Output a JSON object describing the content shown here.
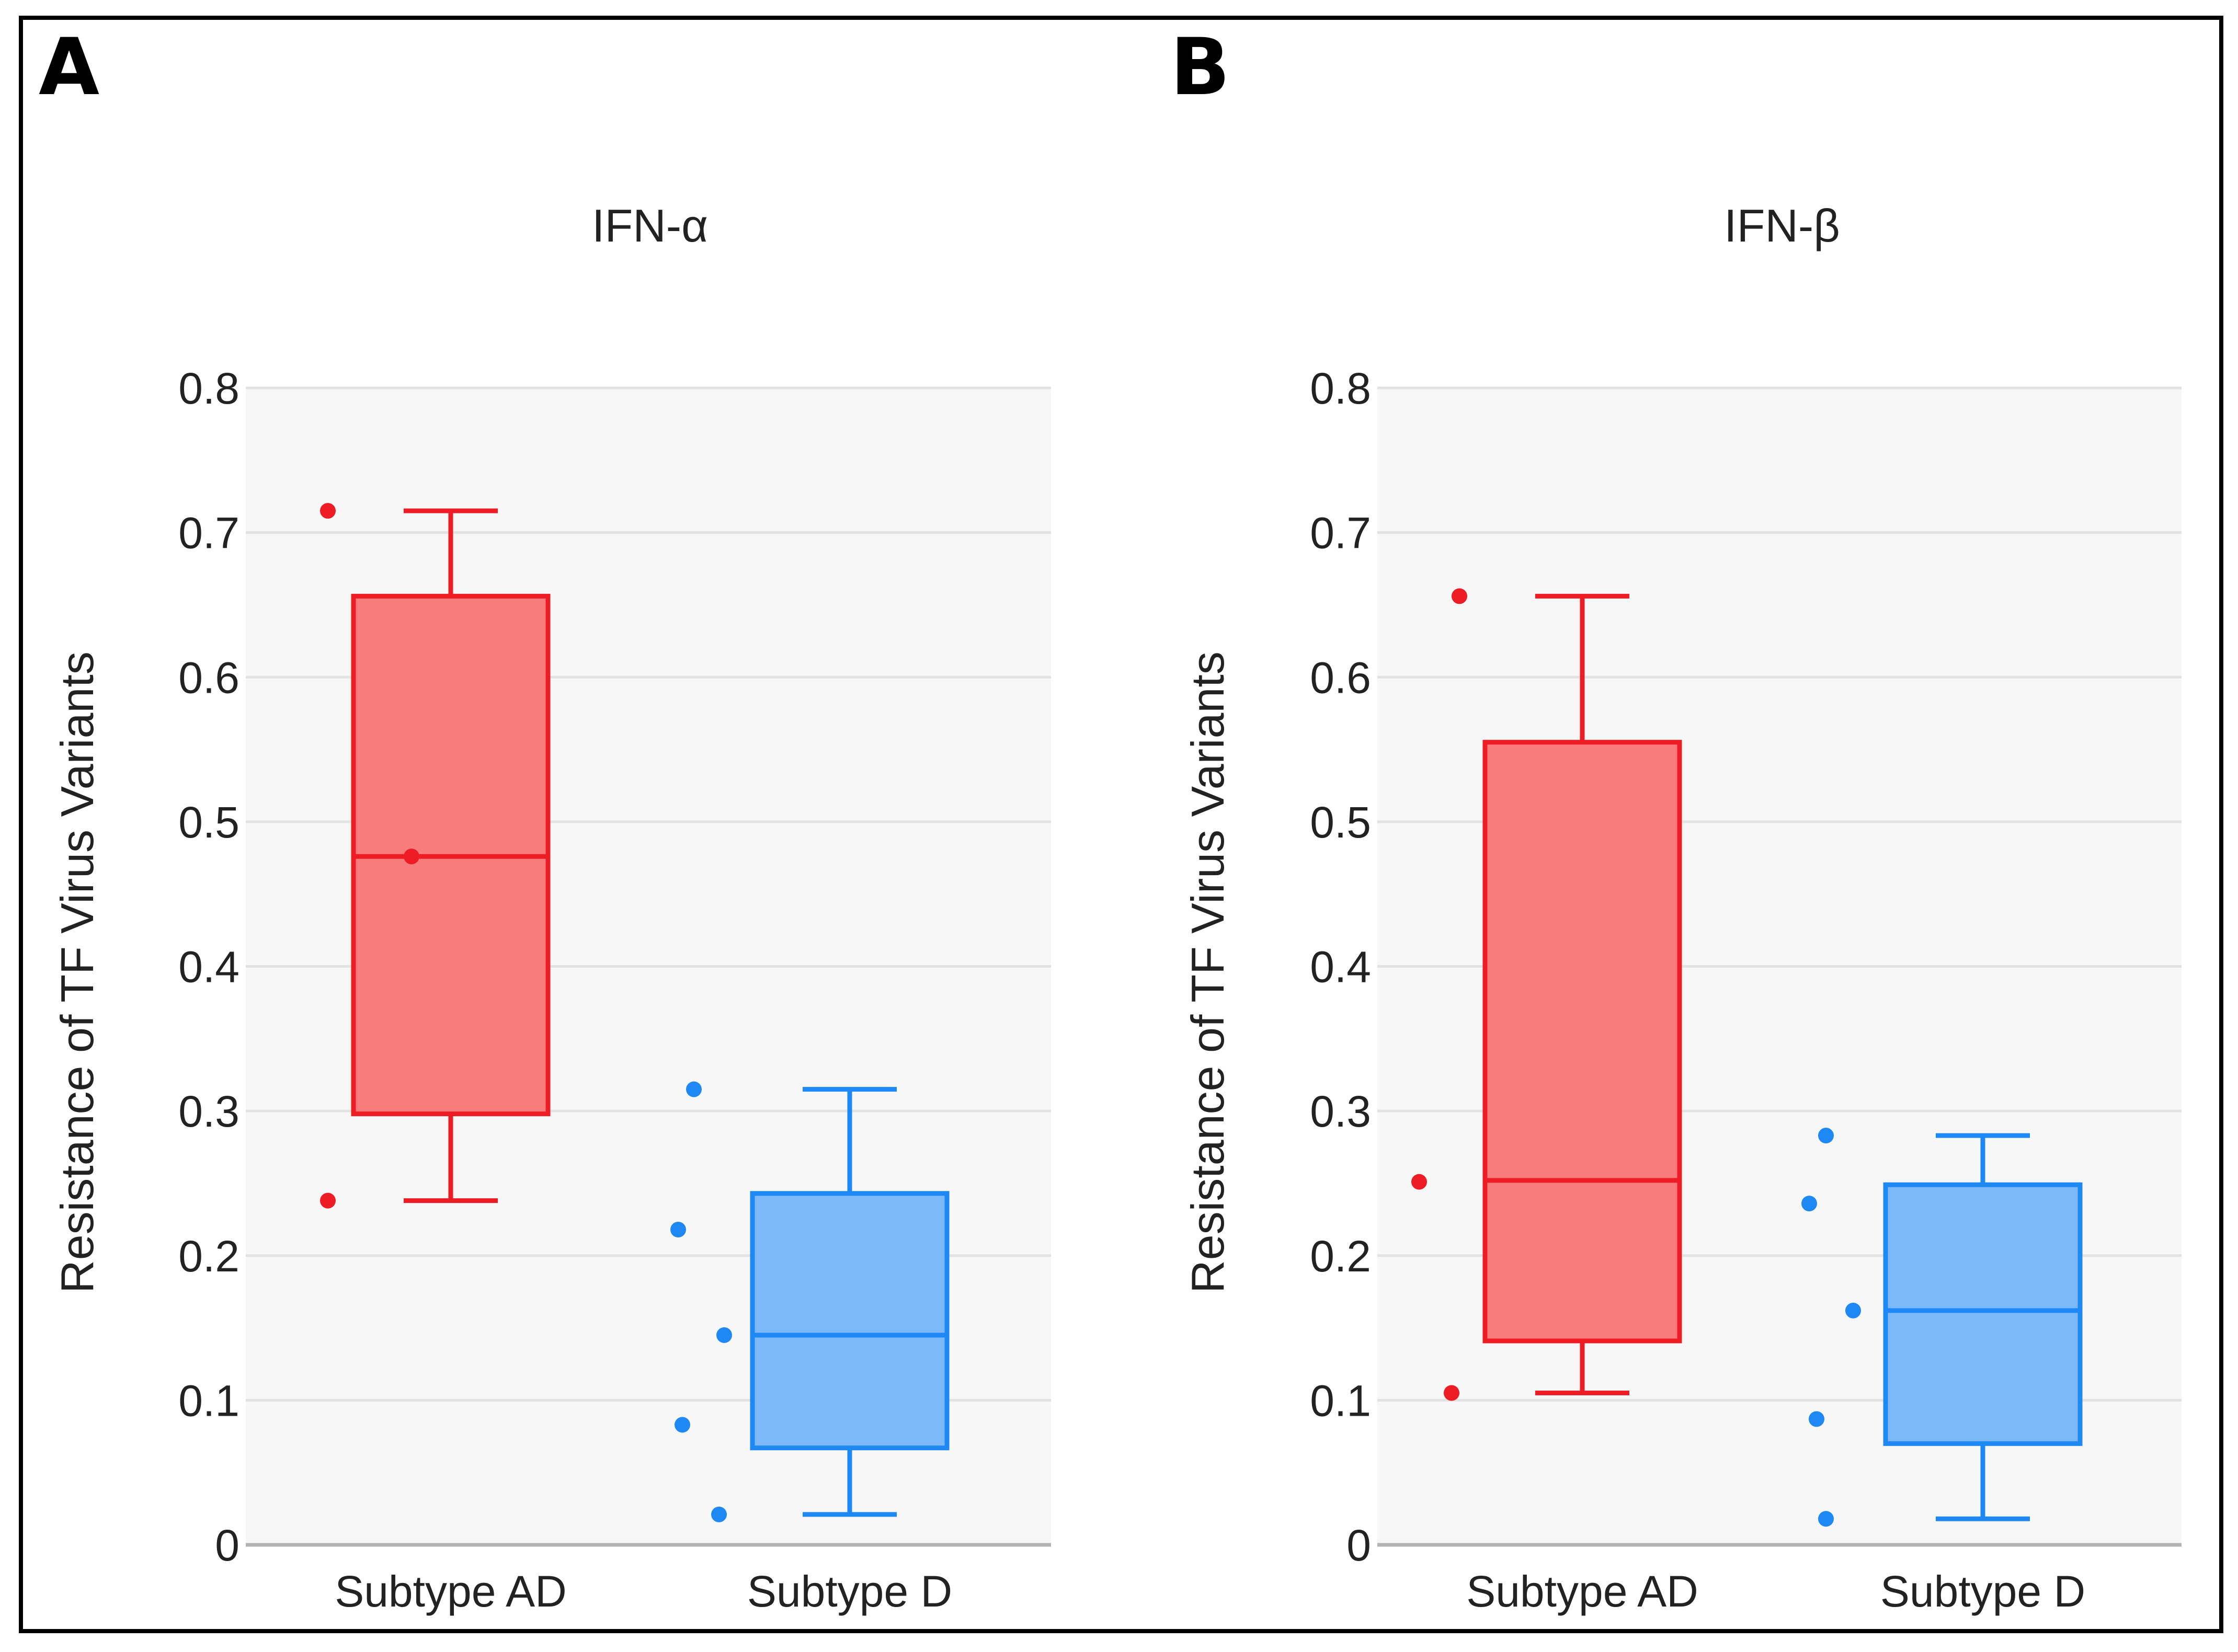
{
  "figure": {
    "panel_labels": [
      "A",
      "B"
    ]
  },
  "chart_data": [
    {
      "type": "box",
      "panel": "A",
      "title": "IFN-α",
      "xlabel": "",
      "ylabel": "Resistance of TF Virus Variants",
      "ylim": [
        0,
        0.8
      ],
      "yticks": [
        0,
        0.1,
        0.2,
        0.3,
        0.4,
        0.5,
        0.6,
        0.7,
        0.8
      ],
      "ytick_labels": [
        "0",
        "0.1",
        "0.2",
        "0.3",
        "0.4",
        "0.5",
        "0.6",
        "0.7",
        "0.8"
      ],
      "grid": true,
      "categories": [
        "Subtype AD",
        "Subtype D"
      ],
      "series": [
        {
          "name": "Subtype AD",
          "color": "#ee1c25",
          "fill": "#f97c7c",
          "whisker_low": 0.238,
          "q1": 0.298,
          "median": 0.476,
          "q3": 0.656,
          "whisker_high": 0.715,
          "points": [
            0.715,
            0.476,
            0.238
          ]
        },
        {
          "name": "Subtype D",
          "color": "#1e88f5",
          "fill": "#7cb8fa",
          "whisker_low": 0.021,
          "q1": 0.067,
          "median": 0.145,
          "q3": 0.243,
          "whisker_high": 0.315,
          "points": [
            0.315,
            0.218,
            0.145,
            0.083,
            0.021
          ]
        }
      ]
    },
    {
      "type": "box",
      "panel": "B",
      "title": "IFN-β",
      "xlabel": "",
      "ylabel": "Resistance of TF Virus Variants",
      "ylim": [
        0,
        0.8
      ],
      "yticks": [
        0,
        0.1,
        0.2,
        0.3,
        0.4,
        0.5,
        0.6,
        0.7,
        0.8
      ],
      "ytick_labels": [
        "0",
        "0.1",
        "0.2",
        "0.3",
        "0.4",
        "0.5",
        "0.6",
        "0.7",
        "0.8"
      ],
      "grid": true,
      "categories": [
        "Subtype AD",
        "Subtype D"
      ],
      "series": [
        {
          "name": "Subtype AD",
          "color": "#ee1c25",
          "fill": "#f97c7c",
          "whisker_low": 0.105,
          "q1": 0.141,
          "median": 0.252,
          "q3": 0.555,
          "whisker_high": 0.656,
          "points": [
            0.656,
            0.251,
            0.105
          ]
        },
        {
          "name": "Subtype D",
          "color": "#1e88f5",
          "fill": "#7cb8fa",
          "whisker_low": 0.018,
          "q1": 0.07,
          "median": 0.162,
          "q3": 0.249,
          "whisker_high": 0.283,
          "points": [
            0.283,
            0.236,
            0.162,
            0.087,
            0.018
          ]
        }
      ]
    }
  ]
}
